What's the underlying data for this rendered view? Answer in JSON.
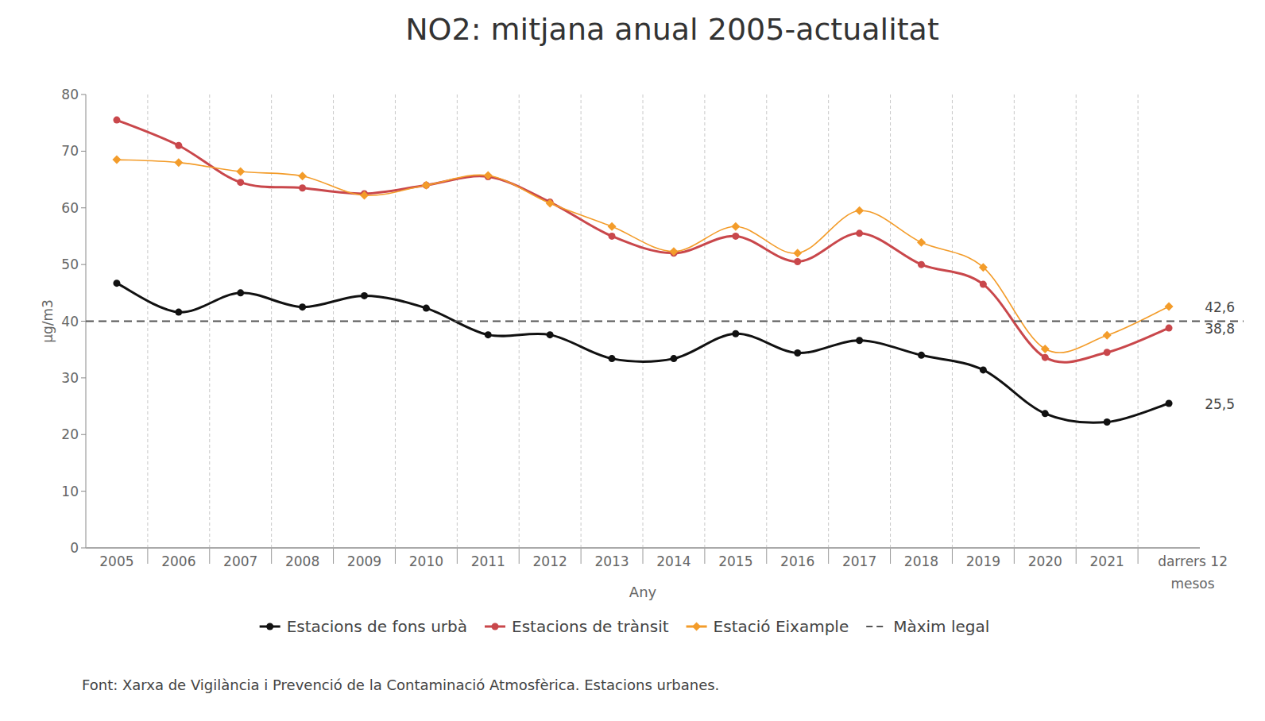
{
  "chart_data": {
    "type": "line",
    "title": "NO2: mitjana anual 2005-actualitat",
    "x_label": "Any",
    "y_label": "µg/m3",
    "source": "Font: Xarxa de Vigilància i Prevenció de la Contaminació Atmosfèrica. Estacions urbanes.",
    "categories": [
      "2005",
      "2006",
      "2007",
      "2008",
      "2009",
      "2010",
      "2011",
      "2012",
      "2013",
      "2014",
      "2015",
      "2016",
      "2017",
      "2018",
      "2019",
      "2020",
      "2021",
      "darrers 12 mesos"
    ],
    "series": [
      {
        "name": "Estacions de fons urbà",
        "color": "#111111",
        "marker": "circle",
        "line_style": "solid",
        "values": [
          46.7,
          41.6,
          45.0,
          42.5,
          44.5,
          42.3,
          37.6,
          37.6,
          33.4,
          33.4,
          37.8,
          34.4,
          36.6,
          34.0,
          31.4,
          23.7,
          22.2,
          25.5
        ],
        "value_labels": [
          null,
          null,
          null,
          null,
          null,
          null,
          null,
          null,
          null,
          null,
          null,
          null,
          null,
          null,
          null,
          null,
          null,
          "25,5"
        ]
      },
      {
        "name": "Estacions de trànsit",
        "color": "#c9474b",
        "marker": "circle",
        "line_style": "solid",
        "values": [
          75.5,
          71.0,
          64.5,
          63.5,
          62.5,
          64.0,
          65.5,
          61.0,
          55.0,
          52.0,
          55.0,
          50.5,
          55.5,
          50.0,
          46.5,
          33.6,
          34.5,
          38.8
        ],
        "value_labels": [
          null,
          null,
          null,
          null,
          null,
          null,
          null,
          null,
          null,
          null,
          null,
          null,
          null,
          null,
          null,
          null,
          null,
          "38,8"
        ]
      },
      {
        "name": "Estació Eixample",
        "color": "#f39c2a",
        "marker": "diamond",
        "line_style": "solid",
        "values": [
          68.5,
          68.0,
          66.4,
          65.6,
          62.2,
          64.0,
          65.7,
          60.8,
          56.7,
          52.3,
          56.7,
          52.0,
          59.5,
          53.9,
          49.5,
          35.1,
          37.5,
          42.6
        ],
        "value_labels": [
          null,
          null,
          null,
          null,
          null,
          null,
          null,
          null,
          null,
          null,
          null,
          null,
          null,
          null,
          null,
          null,
          null,
          "42,6"
        ]
      }
    ],
    "reference_lines": [
      {
        "name": "Màxim legal",
        "value": 40,
        "color": "#555555",
        "line_style": "dashed"
      }
    ],
    "ylim": [
      0,
      80
    ],
    "yticks": [
      0,
      10,
      20,
      30,
      40,
      50,
      60,
      70,
      80
    ],
    "grid": "x",
    "legend": "bottom"
  }
}
